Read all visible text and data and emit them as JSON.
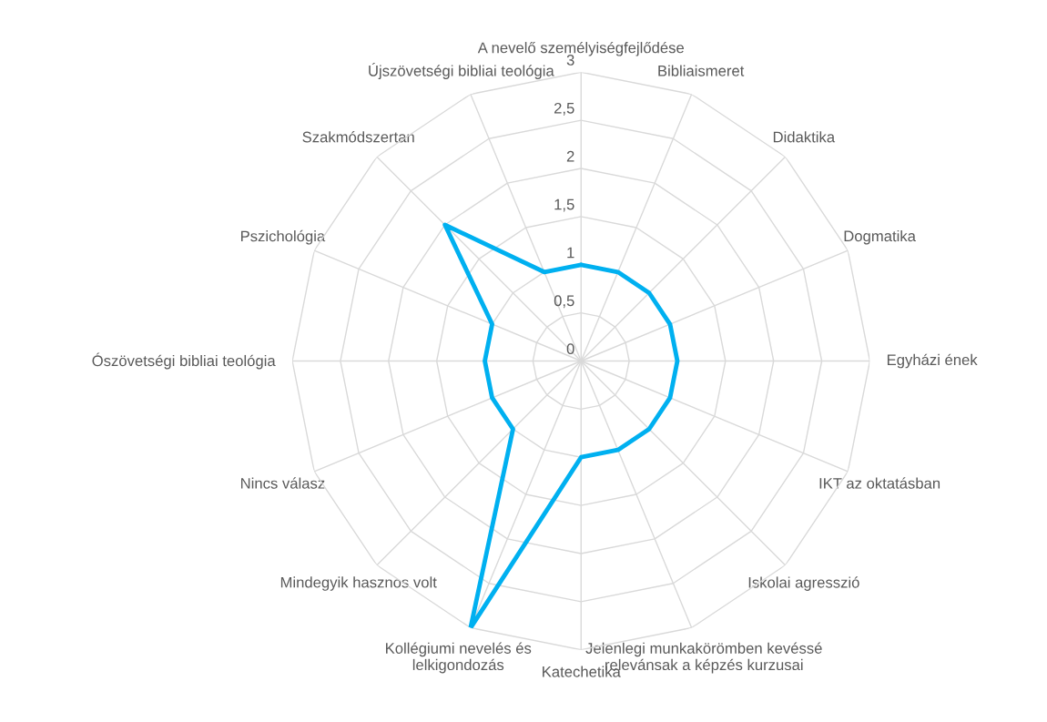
{
  "chart_data": {
    "type": "radar",
    "categories": [
      "A nevelő személyiségfejlődése",
      "Bibliaismeret",
      "Didaktika",
      "Dogmatika",
      "Egyházi ének",
      "IKT az oktatásban",
      "Iskolai agresszió",
      "Jelenlegi munkakörömben kevéssé\nrelevánsak a képzés kurzusai",
      "Katechetika",
      "Kollégiumi nevelés és\nlelkigondozás",
      "Mindegyik hasznos volt",
      "Nincs válasz",
      "Ószövetségi bibliai teológia",
      "Pszichológia",
      "Szakmódszertan",
      "Újszövetségi bibliai teológia"
    ],
    "series": [
      {
        "color": "#00b0f0",
        "values": [
          1,
          1,
          1,
          1,
          1,
          1,
          1,
          1,
          1,
          3,
          1,
          1,
          1,
          1,
          2,
          1
        ]
      }
    ],
    "ylim": [
      0,
      3
    ],
    "yticks": [
      0,
      {
        "value": 0.5,
        "label": "0,5"
      },
      1,
      {
        "value": 1.5,
        "label": "1,5"
      },
      2,
      {
        "value": 2.5,
        "label": "2,5"
      },
      3
    ],
    "grid": true,
    "marker": "none",
    "line_style": "solid"
  }
}
